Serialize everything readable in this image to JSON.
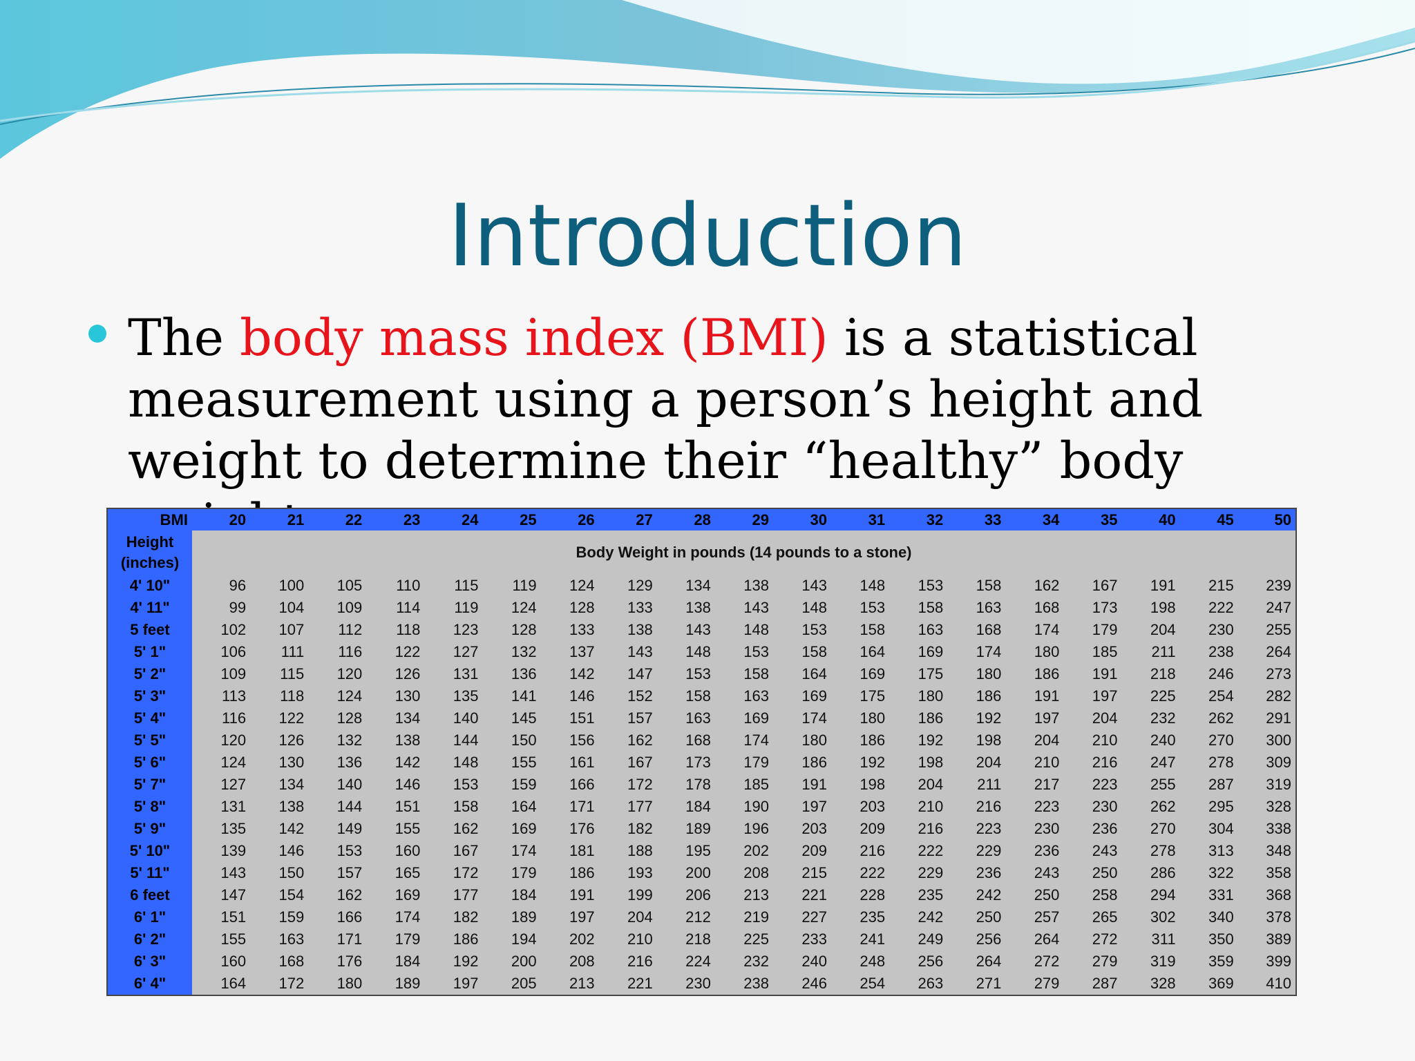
{
  "slide": {
    "title": "Introduction",
    "bullet": {
      "before": "The",
      "highlight": "body mass index (BMI)",
      "after": "is a statistical measurement using a person’s height and weight to determine their “healthy” body weight."
    },
    "table": {
      "corner": "BMI",
      "columns": [
        20,
        21,
        22,
        23,
        24,
        25,
        26,
        27,
        28,
        29,
        30,
        31,
        32,
        33,
        34,
        35,
        40,
        45,
        50
      ],
      "row_header": "Height (inches)",
      "caption": "Body Weight in pounds (14 pounds to a stone)",
      "rows": [
        {
          "height": "4' 10\"",
          "values": [
            96,
            100,
            105,
            110,
            115,
            119,
            124,
            129,
            134,
            138,
            143,
            148,
            153,
            158,
            162,
            167,
            191,
            215,
            239
          ]
        },
        {
          "height": "4' 11\"",
          "values": [
            99,
            104,
            109,
            114,
            119,
            124,
            128,
            133,
            138,
            143,
            148,
            153,
            158,
            163,
            168,
            173,
            198,
            222,
            247
          ]
        },
        {
          "height": "5 feet",
          "values": [
            102,
            107,
            112,
            118,
            123,
            128,
            133,
            138,
            143,
            148,
            153,
            158,
            163,
            168,
            174,
            179,
            204,
            230,
            255
          ]
        },
        {
          "height": "5' 1\"",
          "values": [
            106,
            111,
            116,
            122,
            127,
            132,
            137,
            143,
            148,
            153,
            158,
            164,
            169,
            174,
            180,
            185,
            211,
            238,
            264
          ]
        },
        {
          "height": "5' 2\"",
          "values": [
            109,
            115,
            120,
            126,
            131,
            136,
            142,
            147,
            153,
            158,
            164,
            169,
            175,
            180,
            186,
            191,
            218,
            246,
            273
          ]
        },
        {
          "height": "5' 3\"",
          "values": [
            113,
            118,
            124,
            130,
            135,
            141,
            146,
            152,
            158,
            163,
            169,
            175,
            180,
            186,
            191,
            197,
            225,
            254,
            282
          ]
        },
        {
          "height": "5' 4\"",
          "values": [
            116,
            122,
            128,
            134,
            140,
            145,
            151,
            157,
            163,
            169,
            174,
            180,
            186,
            192,
            197,
            204,
            232,
            262,
            291
          ]
        },
        {
          "height": "5' 5\"",
          "values": [
            120,
            126,
            132,
            138,
            144,
            150,
            156,
            162,
            168,
            174,
            180,
            186,
            192,
            198,
            204,
            210,
            240,
            270,
            300
          ]
        },
        {
          "height": "5' 6\"",
          "values": [
            124,
            130,
            136,
            142,
            148,
            155,
            161,
            167,
            173,
            179,
            186,
            192,
            198,
            204,
            210,
            216,
            247,
            278,
            309
          ]
        },
        {
          "height": "5' 7\"",
          "values": [
            127,
            134,
            140,
            146,
            153,
            159,
            166,
            172,
            178,
            185,
            191,
            198,
            204,
            211,
            217,
            223,
            255,
            287,
            319
          ]
        },
        {
          "height": "5' 8\"",
          "values": [
            131,
            138,
            144,
            151,
            158,
            164,
            171,
            177,
            184,
            190,
            197,
            203,
            210,
            216,
            223,
            230,
            262,
            295,
            328
          ]
        },
        {
          "height": "5' 9\"",
          "values": [
            135,
            142,
            149,
            155,
            162,
            169,
            176,
            182,
            189,
            196,
            203,
            209,
            216,
            223,
            230,
            236,
            270,
            304,
            338
          ]
        },
        {
          "height": "5' 10\"",
          "values": [
            139,
            146,
            153,
            160,
            167,
            174,
            181,
            188,
            195,
            202,
            209,
            216,
            222,
            229,
            236,
            243,
            278,
            313,
            348
          ]
        },
        {
          "height": "5' 11\"",
          "values": [
            143,
            150,
            157,
            165,
            172,
            179,
            186,
            193,
            200,
            208,
            215,
            222,
            229,
            236,
            243,
            250,
            286,
            322,
            358
          ]
        },
        {
          "height": "6 feet",
          "values": [
            147,
            154,
            162,
            169,
            177,
            184,
            191,
            199,
            206,
            213,
            221,
            228,
            235,
            242,
            250,
            258,
            294,
            331,
            368
          ]
        },
        {
          "height": "6' 1\"",
          "values": [
            151,
            159,
            166,
            174,
            182,
            189,
            197,
            204,
            212,
            219,
            227,
            235,
            242,
            250,
            257,
            265,
            302,
            340,
            378
          ]
        },
        {
          "height": "6' 2\"",
          "values": [
            155,
            163,
            171,
            179,
            186,
            194,
            202,
            210,
            218,
            225,
            233,
            241,
            249,
            256,
            264,
            272,
            311,
            350,
            389
          ]
        },
        {
          "height": "6' 3\"",
          "values": [
            160,
            168,
            176,
            184,
            192,
            200,
            208,
            216,
            224,
            232,
            240,
            248,
            256,
            264,
            272,
            279,
            319,
            359,
            399
          ]
        },
        {
          "height": "6' 4\"",
          "values": [
            164,
            172,
            180,
            189,
            197,
            205,
            213,
            221,
            230,
            238,
            246,
            254,
            263,
            271,
            279,
            287,
            328,
            369,
            410
          ]
        }
      ]
    }
  }
}
